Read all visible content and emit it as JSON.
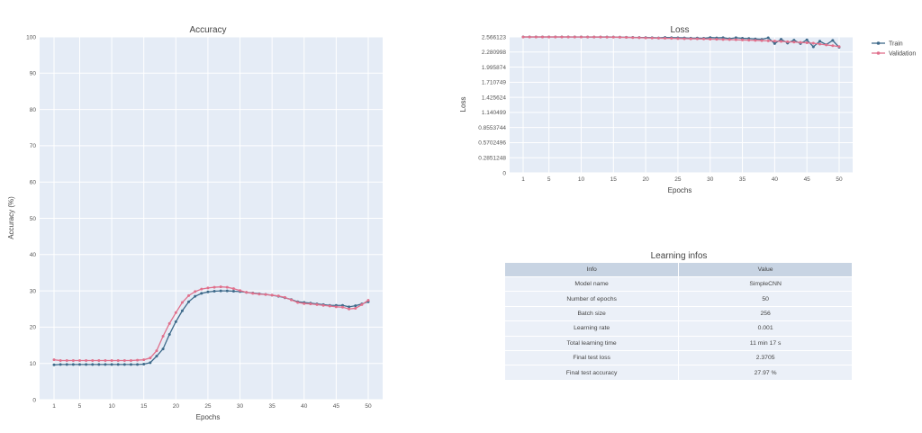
{
  "accuracy_chart": {
    "title": "Accuracy",
    "xlabel": "Epochs",
    "ylabel": "Accuracy (%)",
    "y_ticks": [
      "0",
      "10",
      "20",
      "30",
      "40",
      "50",
      "60",
      "70",
      "80",
      "90",
      "100"
    ],
    "x_ticks": [
      "1",
      "5",
      "10",
      "15",
      "20",
      "25",
      "30",
      "35",
      "40",
      "45",
      "50"
    ]
  },
  "loss_chart": {
    "title": "Loss",
    "xlabel": "Epochs",
    "ylabel": "Loss",
    "y_ticks": [
      "0",
      "0.2851248",
      "0.5702496",
      "0.8553744",
      "1.140499",
      "1.425624",
      "1.710749",
      "1.995874",
      "2.280998",
      "2.566123"
    ],
    "x_ticks": [
      "1",
      "5",
      "10",
      "15",
      "20",
      "25",
      "30",
      "35",
      "40",
      "45",
      "50"
    ],
    "legend": [
      "Train",
      "Validation"
    ]
  },
  "colors": {
    "train": "#3e6a8a",
    "validation": "#e0708c",
    "plot_bg": "#e5ecf6",
    "grid": "#ffffff"
  },
  "chart_data": [
    {
      "type": "line",
      "title": "Accuracy",
      "xlabel": "Epochs",
      "ylabel": "Accuracy (%)",
      "xlim": [
        1,
        50
      ],
      "ylim": [
        0,
        100
      ],
      "grid": true,
      "x": [
        1,
        2,
        3,
        4,
        5,
        6,
        7,
        8,
        9,
        10,
        11,
        12,
        13,
        14,
        15,
        16,
        17,
        18,
        19,
        20,
        21,
        22,
        23,
        24,
        25,
        26,
        27,
        28,
        29,
        30,
        31,
        32,
        33,
        34,
        35,
        36,
        37,
        38,
        39,
        40,
        41,
        42,
        43,
        44,
        45,
        46,
        47,
        48,
        49,
        50
      ],
      "series": [
        {
          "values": [
            9.6,
            9.7,
            9.7,
            9.7,
            9.7,
            9.7,
            9.7,
            9.7,
            9.7,
            9.7,
            9.7,
            9.7,
            9.7,
            9.7,
            9.8,
            10.2,
            12,
            14,
            18,
            21.5,
            24.5,
            27,
            28.5,
            29.3,
            29.7,
            29.9,
            30,
            30,
            29.9,
            29.8,
            29.6,
            29.4,
            29.2,
            29,
            28.8,
            28.5,
            28.1,
            27.6,
            27,
            26.8,
            26.6,
            26.4,
            26.2,
            26,
            26,
            26,
            25.6,
            25.9,
            26.4,
            27
          ]
        },
        {
          "values": [
            11,
            10.8,
            10.8,
            10.8,
            10.8,
            10.8,
            10.8,
            10.8,
            10.8,
            10.8,
            10.8,
            10.8,
            10.8,
            10.9,
            11,
            11.5,
            13.5,
            17.5,
            21,
            24,
            26.8,
            28.7,
            29.8,
            30.5,
            30.8,
            31,
            31.1,
            31,
            30.6,
            30.1,
            29.6,
            29.3,
            29.1,
            29,
            28.8,
            28.6,
            28.2,
            27.5,
            26.8,
            26.5,
            26.4,
            26.2,
            26,
            25.8,
            25.6,
            25.5,
            25,
            25.2,
            26.2,
            27.4
          ]
        }
      ]
    },
    {
      "type": "line",
      "title": "Loss",
      "xlabel": "Epochs",
      "ylabel": "Loss",
      "xlim": [
        1,
        50
      ],
      "ylim": [
        0,
        2.566123
      ],
      "grid": true,
      "legend_position": "top-right",
      "x": [
        1,
        2,
        3,
        4,
        5,
        6,
        7,
        8,
        9,
        10,
        11,
        12,
        13,
        14,
        15,
        16,
        17,
        18,
        19,
        20,
        21,
        22,
        23,
        24,
        25,
        26,
        27,
        28,
        29,
        30,
        31,
        32,
        33,
        34,
        35,
        36,
        37,
        38,
        39,
        40,
        41,
        42,
        43,
        44,
        45,
        46,
        47,
        48,
        49,
        50
      ],
      "series": [
        {
          "name": "Train",
          "values": [
            2.566,
            2.566,
            2.566,
            2.566,
            2.566,
            2.566,
            2.566,
            2.566,
            2.566,
            2.566,
            2.565,
            2.565,
            2.565,
            2.565,
            2.564,
            2.562,
            2.56,
            2.558,
            2.556,
            2.554,
            2.552,
            2.548,
            2.555,
            2.552,
            2.55,
            2.548,
            2.542,
            2.545,
            2.54,
            2.554,
            2.548,
            2.552,
            2.532,
            2.551,
            2.54,
            2.536,
            2.528,
            2.52,
            2.55,
            2.44,
            2.521,
            2.45,
            2.505,
            2.44,
            2.51,
            2.38,
            2.485,
            2.42,
            2.5,
            2.37
          ]
        },
        {
          "name": "Validation",
          "values": [
            2.565,
            2.565,
            2.565,
            2.565,
            2.565,
            2.565,
            2.565,
            2.565,
            2.564,
            2.564,
            2.564,
            2.563,
            2.563,
            2.562,
            2.561,
            2.559,
            2.557,
            2.554,
            2.551,
            2.548,
            2.545,
            2.542,
            2.54,
            2.538,
            2.535,
            2.533,
            2.531,
            2.529,
            2.527,
            2.524,
            2.521,
            2.518,
            2.515,
            2.512,
            2.508,
            2.505,
            2.501,
            2.497,
            2.492,
            2.487,
            2.481,
            2.475,
            2.469,
            2.462,
            2.455,
            2.447,
            2.43,
            2.415,
            2.4,
            2.383
          ]
        }
      ]
    }
  ],
  "learning_infos": {
    "title": "Learning infos",
    "headers": [
      "Info",
      "Value"
    ],
    "rows": [
      [
        "Model name",
        "SimpleCNN"
      ],
      [
        "Number of epochs",
        "50"
      ],
      [
        "Batch size",
        "256"
      ],
      [
        "Learning rate",
        "0.001"
      ],
      [
        "Total learning time",
        "11 min 17 s"
      ],
      [
        "Final test loss",
        "2.3705"
      ],
      [
        "Final test accuracy",
        "27.97 %"
      ]
    ]
  }
}
